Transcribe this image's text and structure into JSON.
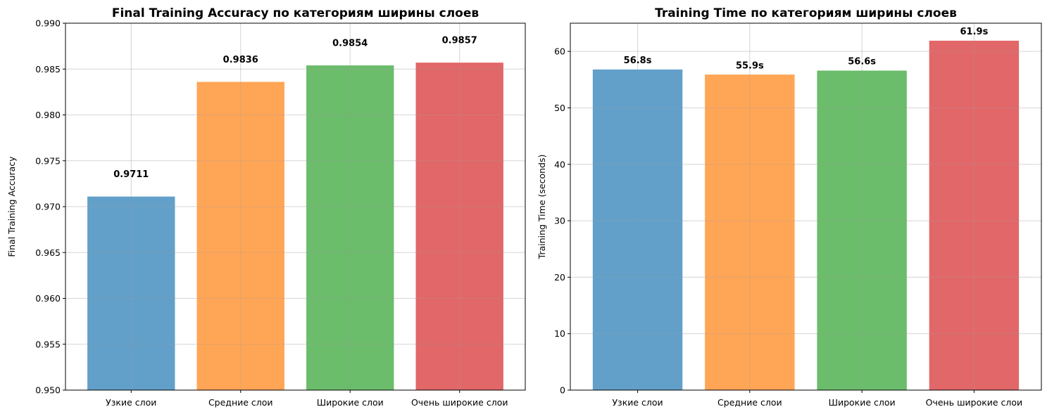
{
  "chart_data": [
    {
      "type": "bar",
      "title": "Final Training Accuracy по категориям ширины слоев",
      "xlabel": "",
      "ylabel": "Final Training Accuracy",
      "categories": [
        "Узкие слои",
        "Средние слои",
        "Широкие слои",
        "Очень широкие слои"
      ],
      "values": [
        0.9711,
        0.9836,
        0.9854,
        0.9857
      ],
      "value_labels": [
        "0.9711",
        "0.9836",
        "0.9854",
        "0.9857"
      ],
      "ylim": [
        0.95,
        0.99
      ],
      "yticks": [
        0.95,
        0.955,
        0.96,
        0.965,
        0.97,
        0.975,
        0.98,
        0.985,
        0.99
      ],
      "ytick_labels": [
        "0.950",
        "0.955",
        "0.960",
        "0.965",
        "0.970",
        "0.975",
        "0.980",
        "0.985",
        "0.990"
      ],
      "colors": [
        "#1f77b4",
        "#ff7f0e",
        "#2ca02c",
        "#d62728"
      ],
      "grid": true
    },
    {
      "type": "bar",
      "title": "Training Time по категориям ширины слоев",
      "xlabel": "",
      "ylabel": "Training Time (seconds)",
      "categories": [
        "Узкие слои",
        "Средние слои",
        "Широкие слои",
        "Очень широкие слои"
      ],
      "values": [
        56.8,
        55.9,
        56.6,
        61.9
      ],
      "value_labels": [
        "56.8s",
        "55.9s",
        "56.6s",
        "61.9s"
      ],
      "ylim": [
        0,
        65
      ],
      "yticks": [
        0,
        10,
        20,
        30,
        40,
        50,
        60
      ],
      "ytick_labels": [
        "0",
        "10",
        "20",
        "30",
        "40",
        "50",
        "60"
      ],
      "colors": [
        "#1f77b4",
        "#ff7f0e",
        "#2ca02c",
        "#d62728"
      ],
      "grid": true
    }
  ]
}
